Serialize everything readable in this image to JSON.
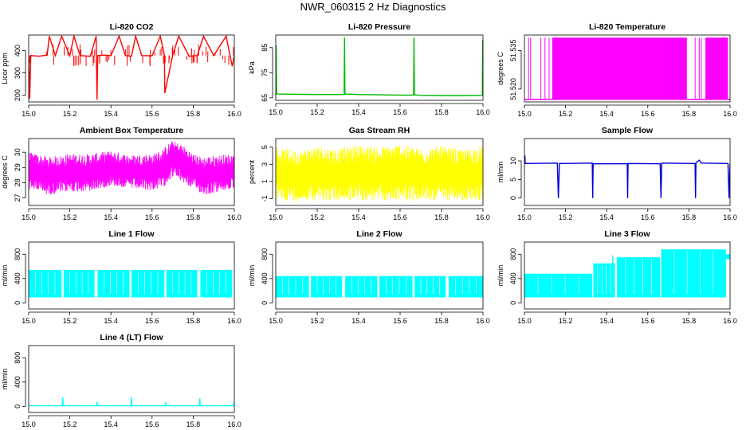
{
  "page": {
    "title": "NWR_060315  2 Hz Diagnostics"
  },
  "chart_data": [
    {
      "type": "line",
      "title": "Li-820 CO2",
      "xlabel": "",
      "ylabel": "Licor ppm",
      "color": "#ff0000",
      "xlim": [
        15.0,
        16.0
      ],
      "ylim": [
        170,
        470
      ],
      "xticks": [
        15.0,
        15.2,
        15.4,
        15.6,
        15.8,
        16.0
      ],
      "yticks": [
        200,
        300,
        400
      ],
      "series": [
        {
          "x": [
            15.0,
            15.005,
            15.01,
            15.05,
            15.09,
            15.1,
            15.13,
            15.16,
            15.2,
            15.22,
            15.25,
            15.3,
            15.328,
            15.332,
            15.336,
            15.37,
            15.4,
            15.44,
            15.47,
            15.5,
            15.52,
            15.55,
            15.6,
            15.64,
            15.66,
            15.662,
            15.7,
            15.73,
            15.78,
            15.82,
            15.85,
            15.9,
            15.96,
            15.99,
            16.0
          ],
          "y": [
            378,
            185,
            378,
            375,
            380,
            465,
            378,
            465,
            377,
            465,
            378,
            375,
            465,
            180,
            378,
            380,
            377,
            465,
            378,
            375,
            465,
            378,
            377,
            465,
            380,
            210,
            378,
            465,
            375,
            378,
            465,
            378,
            465,
            330,
            378
          ]
        }
      ]
    },
    {
      "type": "line",
      "title": "Li-820 Pressure",
      "xlabel": "",
      "ylabel": "kPa",
      "color": "#00bb00",
      "xlim": [
        15.0,
        16.0
      ],
      "ylim": [
        64,
        90
      ],
      "xticks": [
        15.0,
        15.2,
        15.4,
        15.6,
        15.8,
        16.0
      ],
      "yticks": [
        65,
        75,
        85
      ],
      "series": [
        {
          "x": [
            15.0,
            15.002,
            15.004,
            15.1,
            15.2,
            15.33,
            15.332,
            15.334,
            15.4,
            15.5,
            15.6,
            15.665,
            15.667,
            15.669,
            15.7,
            15.8,
            15.9,
            15.997,
            15.999,
            16.0
          ],
          "y": [
            66.5,
            86,
            66.5,
            66.4,
            66.3,
            66.3,
            89,
            66.5,
            66.3,
            66.2,
            66.1,
            66.1,
            89,
            66.2,
            66.0,
            65.9,
            65.9,
            66.0,
            88,
            66.0
          ]
        }
      ]
    },
    {
      "type": "area",
      "title": "Li-820 Temperature",
      "xlabel": "",
      "ylabel": "degrees C",
      "color": "#ff00ff",
      "xlim": [
        15.0,
        16.0
      ],
      "ylim": [
        51.515,
        51.541
      ],
      "xticks": [
        15.0,
        15.2,
        15.4,
        15.6,
        15.8,
        16.0
      ],
      "yticks": [
        51.52,
        51.535
      ],
      "yticklabels": [
        "51.520",
        "51.535"
      ],
      "low": 51.516,
      "high": 51.54,
      "bands": [
        [
          15.135,
          15.79
        ],
        [
          15.88,
          15.99
        ]
      ],
      "spikes": [
        15.02,
        15.03,
        15.08,
        15.1,
        15.12,
        15.83,
        15.85,
        15.86
      ]
    },
    {
      "type": "area",
      "title": "Ambient Box Temperature",
      "xlabel": "",
      "ylabel": "degrees C",
      "color": "#ff00ff",
      "xlim": [
        15.0,
        16.0
      ],
      "ylim": [
        26.5,
        30.9
      ],
      "xticks": [
        15.0,
        15.2,
        15.4,
        15.6,
        15.8,
        16.0
      ],
      "yticks": [
        27,
        28,
        29,
        30
      ],
      "series": [
        {
          "x": [
            15.0,
            15.1,
            15.2,
            15.3,
            15.4,
            15.5,
            15.55,
            15.6,
            15.65,
            15.7,
            15.75,
            15.8,
            15.85,
            15.9,
            16.0
          ],
          "min": [
            27.6,
            27.2,
            27.4,
            27.4,
            27.8,
            27.6,
            27.5,
            27.5,
            27.6,
            28.4,
            28.0,
            27.6,
            27.2,
            27.3,
            27.6
          ],
          "max": [
            30.0,
            29.7,
            29.9,
            29.9,
            30.1,
            29.8,
            29.9,
            29.9,
            30.2,
            30.8,
            30.5,
            29.9,
            29.7,
            29.8,
            29.9
          ]
        }
      ]
    },
    {
      "type": "area",
      "title": "Gas Stream RH",
      "xlabel": "",
      "ylabel": "percent",
      "color": "#ffff00",
      "xlim": [
        15.0,
        16.0
      ],
      "ylim": [
        -1.8,
        6
      ],
      "xticks": [
        15.0,
        15.2,
        15.4,
        15.6,
        15.8,
        16.0
      ],
      "yticks": [
        -1,
        1,
        3,
        5
      ],
      "series": [
        {
          "x": [
            15.0,
            15.1,
            15.2,
            15.3,
            15.4,
            15.5,
            15.6,
            15.7,
            15.8,
            15.9,
            16.0
          ],
          "min": [
            -1.2,
            -1.3,
            -1.2,
            -1.3,
            -1.2,
            -1.3,
            -1.2,
            -1.3,
            -1.2,
            -1.3,
            -1.2
          ],
          "max": [
            5.0,
            4.6,
            5.2,
            4.8,
            5.3,
            5.0,
            5.4,
            4.9,
            5.1,
            4.7,
            5.2
          ]
        }
      ]
    },
    {
      "type": "line",
      "title": "Sample Flow",
      "xlabel": "",
      "ylabel": "ml/min",
      "color": "#0000dd",
      "xlim": [
        15.0,
        16.0
      ],
      "ylim": [
        -2,
        16
      ],
      "xticks": [
        15.0,
        15.2,
        15.4,
        15.6,
        15.8,
        16.0
      ],
      "yticks": [
        0,
        5,
        10
      ],
      "series": [
        {
          "x": [
            15.0,
            15.002,
            15.004,
            15.16,
            15.165,
            15.17,
            15.33,
            15.332,
            15.334,
            15.5,
            15.502,
            15.504,
            15.66,
            15.664,
            15.668,
            15.83,
            15.832,
            15.834,
            15.85,
            15.86,
            15.99,
            15.995,
            16.0
          ],
          "y": [
            9.5,
            11.5,
            9.3,
            9.4,
            0,
            9.3,
            9.4,
            0,
            9.2,
            9.2,
            0,
            9.3,
            9.2,
            0,
            9.4,
            9.3,
            0,
            9.5,
            10.2,
            9.4,
            9.3,
            0,
            9.2
          ]
        }
      ]
    },
    {
      "type": "area",
      "title": "Line 1 Flow",
      "xlabel": "",
      "ylabel": "ml/min",
      "color": "#00ffff",
      "xlim": [
        15.0,
        16.0
      ],
      "ylim": [
        -100,
        1000
      ],
      "xticks": [
        15.0,
        15.2,
        15.4,
        15.6,
        15.8,
        16.0
      ],
      "yticks": [
        0,
        400,
        800
      ],
      "bands": [
        [
          15.0,
          15.16,
          90,
          540
        ],
        [
          15.17,
          15.32,
          90,
          540
        ],
        [
          15.335,
          15.49,
          90,
          540
        ],
        [
          15.5,
          15.66,
          90,
          540
        ],
        [
          15.67,
          15.82,
          90,
          540
        ],
        [
          15.835,
          15.99,
          90,
          540
        ]
      ]
    },
    {
      "type": "area",
      "title": "Line 2 Flow",
      "xlabel": "",
      "ylabel": "ml/min",
      "color": "#00ffff",
      "xlim": [
        15.0,
        16.0
      ],
      "ylim": [
        -100,
        1000
      ],
      "xticks": [
        15.0,
        15.2,
        15.4,
        15.6,
        15.8,
        16.0
      ],
      "yticks": [
        0,
        400,
        800
      ],
      "bands": [
        [
          15.0,
          15.16,
          90,
          440
        ],
        [
          15.17,
          15.32,
          90,
          440
        ],
        [
          15.335,
          15.49,
          90,
          440
        ],
        [
          15.5,
          15.66,
          90,
          440
        ],
        [
          15.67,
          15.82,
          90,
          440
        ],
        [
          15.835,
          16.0,
          90,
          440
        ]
      ]
    },
    {
      "type": "area",
      "title": "Line 3 Flow",
      "xlabel": "",
      "ylabel": "ml/min",
      "color": "#00ffff",
      "xlim": [
        15.0,
        16.0
      ],
      "ylim": [
        -100,
        1000
      ],
      "xticks": [
        15.0,
        15.2,
        15.4,
        15.6,
        15.8,
        16.0
      ],
      "yticks": [
        0,
        400,
        800
      ],
      "bands": [
        [
          15.0,
          15.33,
          90,
          480
        ],
        [
          15.335,
          15.44,
          90,
          650
        ],
        [
          15.45,
          15.66,
          90,
          750
        ],
        [
          15.665,
          15.98,
          90,
          880
        ],
        [
          15.98,
          16.0,
          720,
          800
        ]
      ],
      "spikes": [
        [
          15.43,
          780
        ]
      ]
    },
    {
      "type": "line",
      "title": "Line 4 (LT) Flow",
      "xlabel": "",
      "ylabel": "ml/min",
      "color": "#00ffff",
      "xlim": [
        15.0,
        16.0
      ],
      "ylim": [
        -100,
        1000
      ],
      "xticks": [
        15.0,
        15.2,
        15.4,
        15.6,
        15.8,
        16.0
      ],
      "yticks": [
        0,
        400,
        800
      ],
      "series": [
        {
          "x": [
            15.0,
            15.164,
            15.166,
            15.168,
            15.33,
            15.332,
            15.334,
            15.498,
            15.5,
            15.502,
            15.664,
            15.666,
            15.668,
            15.83,
            15.832,
            15.834,
            15.996,
            15.998,
            16.0
          ],
          "y": [
            10,
            10,
            150,
            10,
            10,
            75,
            10,
            10,
            155,
            10,
            10,
            70,
            10,
            10,
            135,
            10,
            10,
            75,
            10
          ]
        }
      ]
    }
  ]
}
